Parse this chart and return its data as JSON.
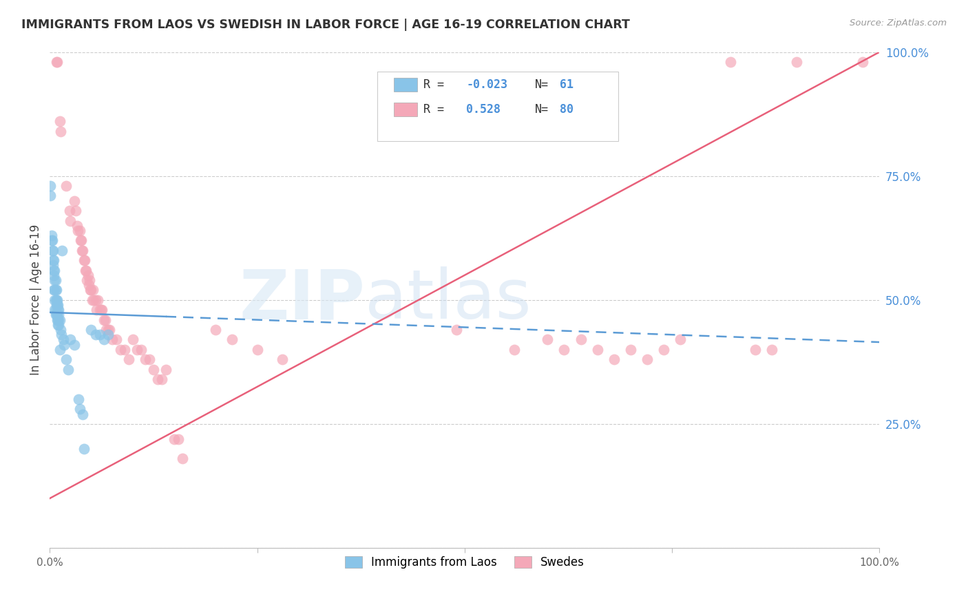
{
  "title": "IMMIGRANTS FROM LAOS VS SWEDISH IN LABOR FORCE | AGE 16-19 CORRELATION CHART",
  "source": "Source: ZipAtlas.com",
  "ylabel": "In Labor Force | Age 16-19",
  "xmin": 0.0,
  "xmax": 1.0,
  "ymin": 0.0,
  "ymax": 1.0,
  "yticks": [
    0.0,
    0.25,
    0.5,
    0.75,
    1.0
  ],
  "ytick_labels": [
    "",
    "25.0%",
    "50.0%",
    "75.0%",
    "100.0%"
  ],
  "xtick_labels": [
    "0.0%",
    "",
    "",
    "",
    "100.0%"
  ],
  "blue_color": "#89C4E8",
  "pink_color": "#F4A8B8",
  "blue_line_color": "#5B9BD5",
  "pink_line_color": "#E8607A",
  "blue_points": [
    [
      0.001,
      0.71
    ],
    [
      0.001,
      0.73
    ],
    [
      0.002,
      0.62
    ],
    [
      0.002,
      0.63
    ],
    [
      0.003,
      0.6
    ],
    [
      0.003,
      0.62
    ],
    [
      0.004,
      0.6
    ],
    [
      0.004,
      0.58
    ],
    [
      0.004,
      0.57
    ],
    [
      0.005,
      0.58
    ],
    [
      0.005,
      0.56
    ],
    [
      0.005,
      0.55
    ],
    [
      0.005,
      0.52
    ],
    [
      0.006,
      0.56
    ],
    [
      0.006,
      0.54
    ],
    [
      0.006,
      0.52
    ],
    [
      0.006,
      0.5
    ],
    [
      0.006,
      0.48
    ],
    [
      0.007,
      0.54
    ],
    [
      0.007,
      0.52
    ],
    [
      0.007,
      0.5
    ],
    [
      0.007,
      0.48
    ],
    [
      0.007,
      0.47
    ],
    [
      0.008,
      0.52
    ],
    [
      0.008,
      0.5
    ],
    [
      0.008,
      0.49
    ],
    [
      0.008,
      0.47
    ],
    [
      0.009,
      0.5
    ],
    [
      0.009,
      0.49
    ],
    [
      0.009,
      0.47
    ],
    [
      0.009,
      0.46
    ],
    [
      0.01,
      0.49
    ],
    [
      0.01,
      0.48
    ],
    [
      0.01,
      0.46
    ],
    [
      0.01,
      0.45
    ],
    [
      0.011,
      0.48
    ],
    [
      0.011,
      0.47
    ],
    [
      0.011,
      0.46
    ],
    [
      0.011,
      0.45
    ],
    [
      0.012,
      0.46
    ],
    [
      0.012,
      0.4
    ],
    [
      0.013,
      0.44
    ],
    [
      0.014,
      0.43
    ],
    [
      0.015,
      0.6
    ],
    [
      0.016,
      0.42
    ],
    [
      0.017,
      0.41
    ],
    [
      0.02,
      0.38
    ],
    [
      0.022,
      0.36
    ],
    [
      0.025,
      0.42
    ],
    [
      0.03,
      0.41
    ],
    [
      0.035,
      0.3
    ],
    [
      0.036,
      0.28
    ],
    [
      0.04,
      0.27
    ],
    [
      0.041,
      0.2
    ],
    [
      0.05,
      0.44
    ],
    [
      0.055,
      0.43
    ],
    [
      0.06,
      0.43
    ],
    [
      0.065,
      0.42
    ],
    [
      0.07,
      0.43
    ]
  ],
  "pink_points": [
    [
      0.008,
      0.98
    ],
    [
      0.009,
      0.98
    ],
    [
      0.012,
      0.86
    ],
    [
      0.013,
      0.84
    ],
    [
      0.02,
      0.73
    ],
    [
      0.024,
      0.68
    ],
    [
      0.025,
      0.66
    ],
    [
      0.03,
      0.7
    ],
    [
      0.031,
      0.68
    ],
    [
      0.033,
      0.65
    ],
    [
      0.034,
      0.64
    ],
    [
      0.036,
      0.64
    ],
    [
      0.037,
      0.62
    ],
    [
      0.038,
      0.62
    ],
    [
      0.039,
      0.6
    ],
    [
      0.04,
      0.6
    ],
    [
      0.041,
      0.58
    ],
    [
      0.042,
      0.58
    ],
    [
      0.043,
      0.56
    ],
    [
      0.044,
      0.56
    ],
    [
      0.045,
      0.54
    ],
    [
      0.046,
      0.55
    ],
    [
      0.047,
      0.53
    ],
    [
      0.048,
      0.54
    ],
    [
      0.049,
      0.52
    ],
    [
      0.05,
      0.52
    ],
    [
      0.051,
      0.5
    ],
    [
      0.052,
      0.52
    ],
    [
      0.053,
      0.5
    ],
    [
      0.055,
      0.5
    ],
    [
      0.056,
      0.48
    ],
    [
      0.058,
      0.5
    ],
    [
      0.06,
      0.48
    ],
    [
      0.062,
      0.48
    ],
    [
      0.063,
      0.48
    ],
    [
      0.065,
      0.46
    ],
    [
      0.067,
      0.46
    ],
    [
      0.068,
      0.44
    ],
    [
      0.07,
      0.44
    ],
    [
      0.072,
      0.44
    ],
    [
      0.075,
      0.42
    ],
    [
      0.08,
      0.42
    ],
    [
      0.085,
      0.4
    ],
    [
      0.09,
      0.4
    ],
    [
      0.095,
      0.38
    ],
    [
      0.1,
      0.42
    ],
    [
      0.105,
      0.4
    ],
    [
      0.11,
      0.4
    ],
    [
      0.115,
      0.38
    ],
    [
      0.12,
      0.38
    ],
    [
      0.125,
      0.36
    ],
    [
      0.13,
      0.34
    ],
    [
      0.135,
      0.34
    ],
    [
      0.14,
      0.36
    ],
    [
      0.15,
      0.22
    ],
    [
      0.155,
      0.22
    ],
    [
      0.16,
      0.18
    ],
    [
      0.2,
      0.44
    ],
    [
      0.22,
      0.42
    ],
    [
      0.25,
      0.4
    ],
    [
      0.28,
      0.38
    ],
    [
      0.49,
      0.44
    ],
    [
      0.56,
      0.4
    ],
    [
      0.6,
      0.42
    ],
    [
      0.62,
      0.4
    ],
    [
      0.64,
      0.42
    ],
    [
      0.66,
      0.4
    ],
    [
      0.68,
      0.38
    ],
    [
      0.7,
      0.4
    ],
    [
      0.72,
      0.38
    ],
    [
      0.74,
      0.4
    ],
    [
      0.76,
      0.42
    ],
    [
      0.82,
      0.98
    ],
    [
      0.85,
      0.4
    ],
    [
      0.87,
      0.4
    ],
    [
      0.9,
      0.98
    ],
    [
      0.98,
      0.98
    ]
  ],
  "blue_line": {
    "x0": 0.0,
    "x1": 1.0,
    "y0": 0.475,
    "y1": 0.415
  },
  "blue_line_solid_end": 0.14,
  "pink_line": {
    "x0": 0.0,
    "x1": 1.0,
    "y0": 0.1,
    "y1": 1.0
  }
}
